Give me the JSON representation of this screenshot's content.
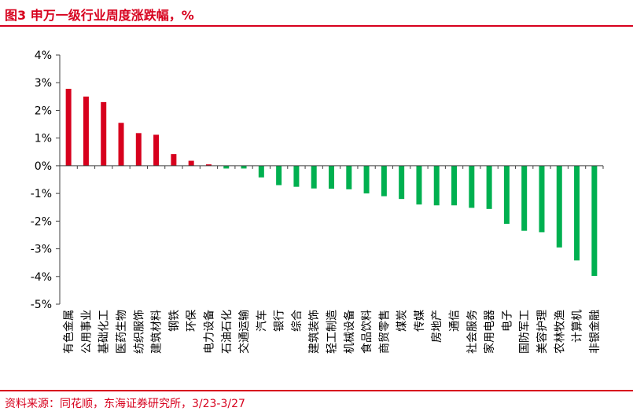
{
  "figure": {
    "title": "图3 申万一级行业周度涨跌幅，%",
    "source": "资料来源：同花顺，东海证券研究所，3/23-3/27"
  },
  "colors": {
    "positive": "#d7001d",
    "negative": "#00b050",
    "accent": "#d7001d"
  },
  "chart_data": {
    "type": "bar",
    "title": "",
    "xlabel": "",
    "ylabel": "",
    "ylim": [
      -5,
      4
    ],
    "y_ticks": [
      "4%",
      "3%",
      "2%",
      "1%",
      "0%",
      "-1%",
      "-2%",
      "-3%",
      "-4%",
      "-5%"
    ],
    "grid": false,
    "legend": "none",
    "categories": [
      "有色金属",
      "公用事业",
      "基础化工",
      "医药生物",
      "纺织服饰",
      "建筑材料",
      "钢铁",
      "环保",
      "电力设备",
      "石油石化",
      "交通运输",
      "汽车",
      "银行",
      "综合",
      "建筑装饰",
      "轻工制造",
      "机械设备",
      "食品饮料",
      "商贸零售",
      "煤炭",
      "传媒",
      "房地产",
      "通信",
      "社会服务",
      "家用电器",
      "电子",
      "国防军工",
      "美容护理",
      "农林牧渔",
      "计算机",
      "非银金融"
    ],
    "values": [
      2.78,
      2.5,
      2.3,
      1.55,
      1.18,
      1.12,
      0.42,
      0.18,
      0.05,
      -0.1,
      -0.1,
      -0.42,
      -0.7,
      -0.76,
      -0.82,
      -0.83,
      -0.85,
      -1.0,
      -1.1,
      -1.2,
      -1.4,
      -1.43,
      -1.43,
      -1.52,
      -1.56,
      -2.1,
      -2.35,
      -2.4,
      -2.95,
      -3.42,
      -3.98
    ]
  }
}
